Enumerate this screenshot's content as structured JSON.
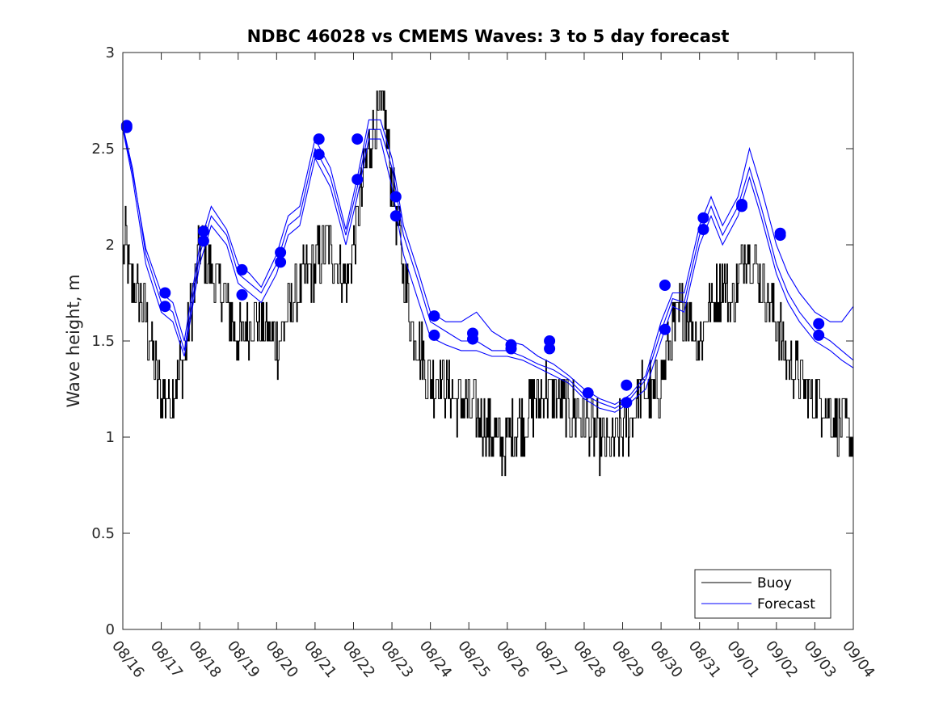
{
  "chart_data": {
    "type": "line",
    "title": "NDBC 46028 vs CMEMS Waves: 3 to 5 day forecast",
    "ylabel": "Wave height, m",
    "xlabel": "",
    "xlim": [
      0,
      19
    ],
    "ylim": [
      0,
      3
    ],
    "yticks": [
      0,
      0.5,
      1,
      1.5,
      2,
      2.5,
      3
    ],
    "ytick_labels": [
      "0",
      "0.5",
      "1",
      "1.5",
      "2",
      "2.5",
      "3"
    ],
    "xtick_labels": [
      "08/16",
      "08/17",
      "08/18",
      "08/19",
      "08/20",
      "08/21",
      "08/22",
      "08/23",
      "08/24",
      "08/25",
      "08/26",
      "08/27",
      "08/28",
      "08/29",
      "08/30",
      "08/31",
      "09/01",
      "09/02",
      "09/03",
      "09/04"
    ],
    "legend": {
      "location": "bottom-right",
      "entries": [
        "Buoy",
        "Forecast"
      ]
    },
    "colors": {
      "buoy": "#000000",
      "forecast": "#0000ff",
      "marker": "#0000ff"
    },
    "buoy_anchor_days": [
      0,
      0.1,
      0.2,
      0.5,
      0.7,
      1.0,
      1.2,
      1.4,
      1.6,
      1.8,
      2.0,
      2.2,
      2.4,
      2.7,
      3.0,
      3.3,
      3.6,
      3.9,
      4.1,
      4.4,
      4.7,
      5.0,
      5.3,
      5.6,
      5.8,
      6.1,
      6.3,
      6.5,
      6.8,
      7.0,
      7.2,
      7.5,
      7.8,
      8.0,
      8.3,
      8.6,
      9.0,
      9.3,
      9.6,
      9.9,
      10.2,
      10.5,
      10.8,
      11.0,
      11.3,
      11.6,
      12.0,
      12.3,
      12.6,
      12.9,
      13.2,
      13.4,
      13.6,
      13.8,
      14.0,
      14.2,
      14.4,
      14.6,
      14.8,
      15.0,
      15.3,
      15.6,
      15.8,
      16.0,
      16.2,
      16.4,
      16.6,
      16.8,
      17.0,
      17.3,
      17.6,
      17.9,
      18.2,
      18.5,
      18.8,
      19.0
    ],
    "buoy_anchor_values": [
      2.0,
      2.0,
      1.8,
      1.7,
      1.5,
      1.2,
      1.2,
      1.3,
      1.4,
      1.7,
      2.0,
      1.9,
      1.8,
      1.7,
      1.5,
      1.6,
      1.6,
      1.5,
      1.5,
      1.7,
      1.8,
      1.9,
      2.0,
      1.9,
      1.8,
      2.1,
      2.4,
      2.6,
      2.7,
      2.3,
      2.0,
      1.6,
      1.4,
      1.3,
      1.3,
      1.2,
      1.15,
      1.1,
      1.0,
      0.95,
      1.05,
      1.1,
      1.2,
      1.25,
      1.2,
      1.15,
      1.1,
      1.0,
      0.95,
      1.0,
      1.1,
      1.2,
      1.25,
      1.2,
      1.3,
      1.5,
      1.6,
      1.7,
      1.6,
      1.5,
      1.7,
      1.8,
      1.7,
      1.8,
      2.0,
      1.9,
      1.8,
      1.7,
      1.6,
      1.4,
      1.3,
      1.2,
      1.2,
      1.1,
      1.05,
      1.0
    ],
    "series": [
      {
        "name": "Forecast 1",
        "x": [
          0,
          0.25,
          0.6,
          1.0,
          1.3,
          1.6,
          2.0,
          2.3,
          2.7,
          3.0,
          3.3,
          3.6,
          4.0,
          4.3,
          4.6,
          5.0,
          5.4,
          5.8,
          6.1,
          6.4,
          6.7,
          7.0,
          7.3,
          7.7,
          8.0,
          8.4,
          8.8,
          9.2,
          9.6,
          10.0,
          10.4,
          10.8,
          11.2,
          11.6,
          12.0,
          12.4,
          12.8,
          13.2,
          13.6,
          14.0,
          14.3,
          14.6,
          15.0,
          15.3,
          15.6,
          16.0,
          16.3,
          16.6,
          17.0,
          17.3,
          17.6,
          18.0,
          18.4,
          18.7,
          19.0
        ],
        "y": [
          2.62,
          2.4,
          1.95,
          1.7,
          1.65,
          1.45,
          1.95,
          2.15,
          2.05,
          1.85,
          1.8,
          1.75,
          1.9,
          2.1,
          2.15,
          2.5,
          2.35,
          2.05,
          2.3,
          2.6,
          2.6,
          2.4,
          2.05,
          1.8,
          1.6,
          1.55,
          1.5,
          1.5,
          1.45,
          1.45,
          1.42,
          1.38,
          1.35,
          1.3,
          1.22,
          1.18,
          1.15,
          1.2,
          1.3,
          1.55,
          1.72,
          1.7,
          2.05,
          2.2,
          2.05,
          2.2,
          2.4,
          2.2,
          1.9,
          1.75,
          1.65,
          1.55,
          1.5,
          1.45,
          1.4
        ]
      },
      {
        "name": "Forecast 2",
        "x": [
          0,
          0.25,
          0.6,
          1.0,
          1.3,
          1.6,
          2.0,
          2.3,
          2.7,
          3.0,
          3.3,
          3.6,
          4.0,
          4.3,
          4.6,
          5.0,
          5.4,
          5.8,
          6.1,
          6.4,
          6.7,
          7.0,
          7.3,
          7.7,
          8.0,
          8.4,
          8.8,
          9.2,
          9.6,
          10.0,
          10.4,
          10.8,
          11.2,
          11.6,
          12.0,
          12.4,
          12.8,
          13.2,
          13.6,
          14.0,
          14.3,
          14.6,
          15.0,
          15.3,
          15.6,
          16.0,
          16.3,
          16.6,
          17.0,
          17.3,
          17.6,
          18.0,
          18.4,
          18.7,
          19.0
        ],
        "y": [
          2.6,
          2.35,
          1.9,
          1.65,
          1.6,
          1.42,
          1.9,
          2.1,
          2.0,
          1.8,
          1.75,
          1.7,
          1.85,
          2.05,
          2.1,
          2.45,
          2.3,
          2.0,
          2.25,
          2.55,
          2.55,
          2.3,
          1.95,
          1.7,
          1.52,
          1.48,
          1.45,
          1.45,
          1.42,
          1.42,
          1.4,
          1.36,
          1.32,
          1.28,
          1.2,
          1.15,
          1.13,
          1.18,
          1.25,
          1.5,
          1.68,
          1.65,
          2.0,
          2.15,
          2.0,
          2.15,
          2.35,
          2.15,
          1.85,
          1.7,
          1.6,
          1.5,
          1.45,
          1.4,
          1.36
        ]
      },
      {
        "name": "Forecast 3",
        "x": [
          0,
          0.25,
          0.6,
          1.0,
          1.3,
          1.6,
          2.0,
          2.3,
          2.7,
          3.0,
          3.3,
          3.6,
          4.0,
          4.3,
          4.6,
          5.0,
          5.4,
          5.8,
          6.1,
          6.4,
          6.7,
          7.0,
          7.3,
          7.7,
          8.0,
          8.4,
          8.8,
          9.2,
          9.6,
          10.0,
          10.4,
          10.8,
          11.2,
          11.6,
          12.0,
          12.4,
          12.8,
          13.2,
          13.6,
          14.0,
          14.3,
          14.6,
          15.0,
          15.3,
          15.6,
          16.0,
          16.3,
          16.6,
          17.0,
          17.3,
          17.6,
          18.0,
          18.4,
          18.7,
          19.0
        ],
        "y": [
          2.61,
          2.38,
          1.98,
          1.75,
          1.7,
          1.5,
          2.0,
          2.2,
          2.08,
          1.9,
          1.85,
          1.78,
          1.95,
          2.15,
          2.2,
          2.55,
          2.4,
          2.08,
          2.35,
          2.65,
          2.65,
          2.45,
          2.1,
          1.85,
          1.65,
          1.6,
          1.6,
          1.65,
          1.55,
          1.5,
          1.48,
          1.42,
          1.38,
          1.32,
          1.25,
          1.2,
          1.17,
          1.22,
          1.32,
          1.6,
          1.75,
          1.75,
          2.1,
          2.25,
          2.1,
          2.25,
          2.5,
          2.3,
          2.0,
          1.85,
          1.75,
          1.65,
          1.6,
          1.6,
          1.68
        ]
      }
    ],
    "markers_x": [
      0.1,
      0.1,
      1.1,
      1.1,
      2.1,
      2.1,
      3.1,
      3.1,
      4.1,
      4.1,
      5.1,
      5.1,
      6.1,
      6.1,
      7.1,
      7.1,
      8.1,
      8.1,
      9.1,
      9.1,
      10.1,
      10.1,
      11.1,
      11.1,
      12.1,
      13.1,
      13.1,
      14.1,
      14.1,
      15.1,
      15.1,
      16.1,
      16.1,
      17.1,
      17.1,
      18.1,
      18.1
    ],
    "markers_y": [
      2.62,
      2.61,
      1.75,
      1.68,
      2.07,
      2.02,
      1.87,
      1.74,
      1.96,
      1.91,
      2.55,
      2.47,
      2.55,
      2.34,
      2.25,
      2.15,
      1.63,
      1.53,
      1.54,
      1.51,
      1.48,
      1.46,
      1.5,
      1.46,
      1.23,
      1.27,
      1.18,
      1.79,
      1.56,
      2.14,
      2.08,
      2.21,
      2.2,
      2.06,
      2.05,
      1.59,
      1.53
    ]
  }
}
